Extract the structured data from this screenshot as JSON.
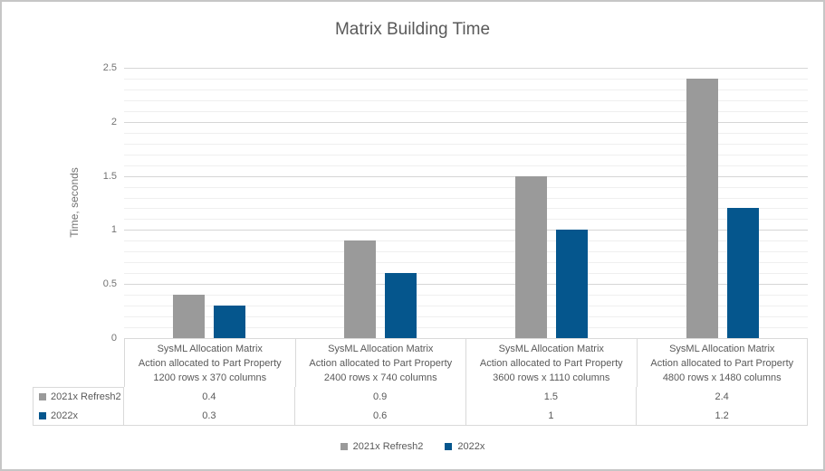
{
  "title": "Matrix Building Time",
  "colors": {
    "series1": "#9a9a9a",
    "series2": "#05568d",
    "grid_major": "#d6d6d6",
    "grid_minor": "#efefef",
    "table_border": "#d9d9d9",
    "text": "#595959",
    "axis_text": "#737373",
    "outer_border": "#c6c6c6"
  },
  "chart_data": {
    "type": "bar",
    "title": "Matrix Building Time",
    "xlabel": "",
    "ylabel": "Time, seconds",
    "ylim": [
      0,
      2.5
    ],
    "ytick_interval_major": 0.5,
    "ytick_interval_minor": 0.1,
    "ytick_labels": [
      "0",
      "0.5",
      "1",
      "1.5",
      "2",
      "2.5"
    ],
    "grid": true,
    "legend_position": "bottom",
    "categories": [
      [
        "SysML Allocation Matrix",
        "Action allocated to Part Property",
        "1200 rows x 370 columns"
      ],
      [
        "SysML Allocation Matrix",
        "Action allocated to Part Property",
        "2400 rows x 740 columns"
      ],
      [
        "SysML Allocation Matrix",
        "Action allocated to Part Property",
        "3600 rows x 1110 columns"
      ],
      [
        "SysML Allocation Matrix",
        "Action allocated to Part Property",
        "4800 rows x 1480 columns"
      ]
    ],
    "series": [
      {
        "name": "2021x Refresh2",
        "color": "#9a9a9a",
        "values": [
          0.4,
          0.9,
          1.5,
          2.4
        ],
        "value_labels": [
          "0.4",
          "0.9",
          "1.5",
          "2.4"
        ]
      },
      {
        "name": "2022x",
        "color": "#05568d",
        "values": [
          0.3,
          0.6,
          1,
          1.2
        ],
        "value_labels": [
          "0.3",
          "0.6",
          "1",
          "1.2"
        ]
      }
    ]
  },
  "legend": {
    "items": [
      "2021x Refresh2",
      "2022x"
    ]
  }
}
